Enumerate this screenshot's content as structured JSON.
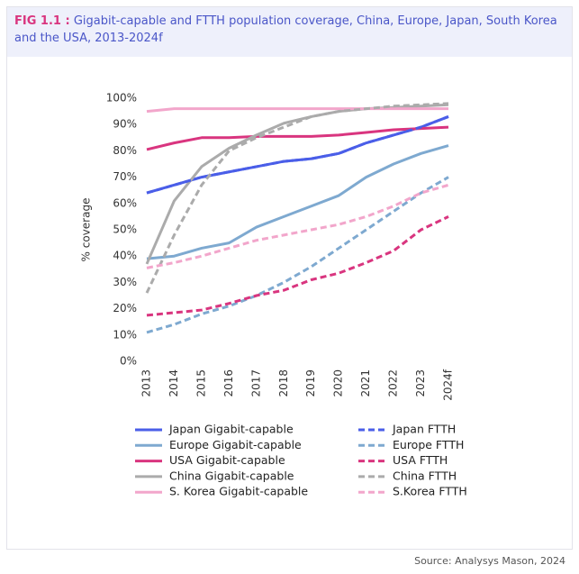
{
  "chart_data": {
    "type": "line",
    "figure_label": "FIG 1.1 :",
    "title": "Gigabit-capable and FTTH population coverage, China, Europe, Japan, South Korea and the USA, 2013-2024f",
    "y_label": "% coverage",
    "source": "Source: Analysys Mason, 2024",
    "categories": [
      "2013",
      "2014",
      "2015",
      "2016",
      "2017",
      "2018",
      "2019",
      "2020",
      "2021",
      "2022",
      "2023",
      "2024f"
    ],
    "ylim": [
      0,
      100
    ],
    "yticks": [
      {
        "value": 0,
        "label": "0%"
      },
      {
        "value": 10,
        "label": "10%"
      },
      {
        "value": 20,
        "label": "20%"
      },
      {
        "value": 30,
        "label": "30%"
      },
      {
        "value": 40,
        "label": "40%"
      },
      {
        "value": 50,
        "label": "50%"
      },
      {
        "value": 60,
        "label": "60%"
      },
      {
        "value": 70,
        "label": "70%"
      },
      {
        "value": 80,
        "label": "80%"
      },
      {
        "value": 90,
        "label": "90%"
      },
      {
        "value": 100,
        "label": "100%"
      }
    ],
    "series": [
      {
        "name": "Japan Gigabit-capable",
        "color": "#4a5ee8",
        "dashed": false,
        "values": [
          64,
          67,
          70,
          72,
          74,
          76,
          77,
          79,
          83,
          86,
          89,
          93
        ]
      },
      {
        "name": "Europe Gigabit-capable",
        "color": "#7ea9d0",
        "dashed": false,
        "values": [
          39,
          40,
          43,
          45,
          51,
          55,
          59,
          63,
          70,
          75,
          79,
          82
        ]
      },
      {
        "name": "USA Gigabit-capable",
        "color": "#d9357f",
        "dashed": false,
        "values": [
          80.5,
          83,
          85,
          85,
          85.5,
          85.5,
          85.5,
          86,
          87,
          88,
          88.5,
          89
        ]
      },
      {
        "name": "China Gigabit-capable",
        "color": "#ababab",
        "dashed": false,
        "values": [
          37,
          61,
          74,
          81,
          86,
          90.5,
          93,
          95,
          96,
          96.5,
          97,
          97.5
        ]
      },
      {
        "name": "S. Korea Gigabit-capable",
        "color": "#f2a6cb",
        "dashed": false,
        "values": [
          95,
          96,
          96,
          96,
          96,
          96,
          96,
          96,
          96,
          96,
          96,
          96
        ]
      },
      {
        "name": "Japan FTTH",
        "color": "#4a5ee8",
        "dashed": true,
        "values": [
          64,
          67,
          70,
          72,
          74,
          76,
          77,
          79,
          83,
          86,
          89,
          93
        ]
      },
      {
        "name": "Europe FTTH",
        "color": "#7ea9d0",
        "dashed": true,
        "values": [
          11,
          14,
          18,
          21,
          25,
          30,
          36,
          43,
          50,
          57,
          64,
          70
        ]
      },
      {
        "name": "USA FTTH",
        "color": "#d9357f",
        "dashed": true,
        "values": [
          17.5,
          18.5,
          19.5,
          22,
          25,
          27,
          31,
          33.5,
          37.5,
          42,
          50,
          55
        ]
      },
      {
        "name": "China FTTH",
        "color": "#ababab",
        "dashed": true,
        "values": [
          26,
          48,
          67,
          80,
          85,
          89,
          93,
          95,
          96,
          97,
          97.5,
          98
        ]
      },
      {
        "name": "S.Korea FTTH",
        "color": "#f2a6cb",
        "dashed": true,
        "values": [
          35.5,
          37.5,
          40,
          43,
          46,
          48,
          50,
          52,
          55,
          59,
          64,
          67
        ]
      }
    ]
  }
}
